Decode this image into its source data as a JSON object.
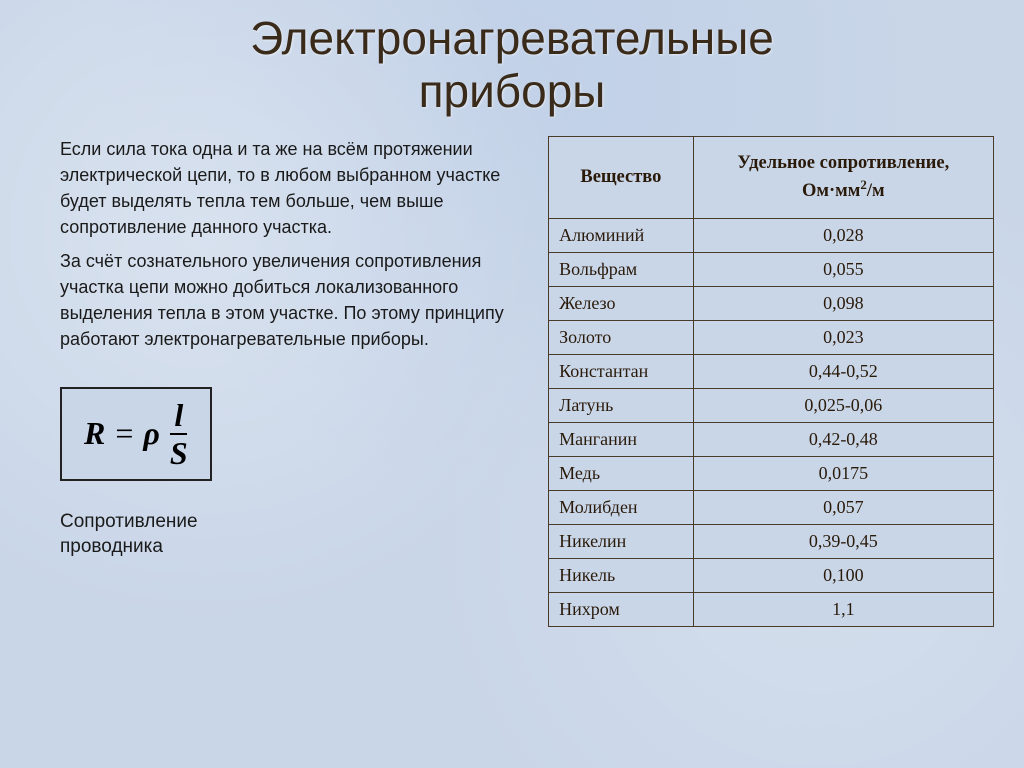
{
  "title_line1": "Электронагревательные",
  "title_line2": "приборы",
  "paragraph1": "Если сила тока одна и та же на всём протяжении электрической цепи, то в любом выбранном участке будет выделять тепла тем больше, чем выше сопротивление данного участка.",
  "paragraph2": "За счёт сознательного увеличения сопротивления участка цепи можно добиться локализованного выделения тепла в этом участке. По этому принципу работают электронагревательные приборы.",
  "formula": {
    "R": "R",
    "eq": "=",
    "rho": "ρ",
    "num": "l",
    "den": "S"
  },
  "caption_line1": "Сопротивление",
  "caption_line2": "проводника",
  "table": {
    "header_material": "Вещество",
    "header_resistivity_l1": "Удельное сопротивление,",
    "header_resistivity_l2_a": "Ом·мм",
    "header_resistivity_l2_sup": "2",
    "header_resistivity_l2_b": "/м",
    "rows": [
      {
        "material": "Алюминий",
        "value": "0,028"
      },
      {
        "material": "Вольфрам",
        "value": "0,055"
      },
      {
        "material": "Железо",
        "value": "0,098"
      },
      {
        "material": "Золото",
        "value": "0,023"
      },
      {
        "material": "Константан",
        "value": "0,44-0,52"
      },
      {
        "material": "Латунь",
        "value": "0,025-0,06"
      },
      {
        "material": "Манганин",
        "value": "0,42-0,48"
      },
      {
        "material": "Медь",
        "value": "0,0175"
      },
      {
        "material": "Молибден",
        "value": "0,057"
      },
      {
        "material": "Никелин",
        "value": "0,39-0,45"
      },
      {
        "material": "Никель",
        "value": "0,100"
      },
      {
        "material": "Нихром",
        "value": "1,1"
      }
    ]
  },
  "colors": {
    "background": "#c9d6e8",
    "title_color": "#3a2a1a",
    "text_color": "#1a1a1a",
    "border_color": "#4a3a2a"
  }
}
